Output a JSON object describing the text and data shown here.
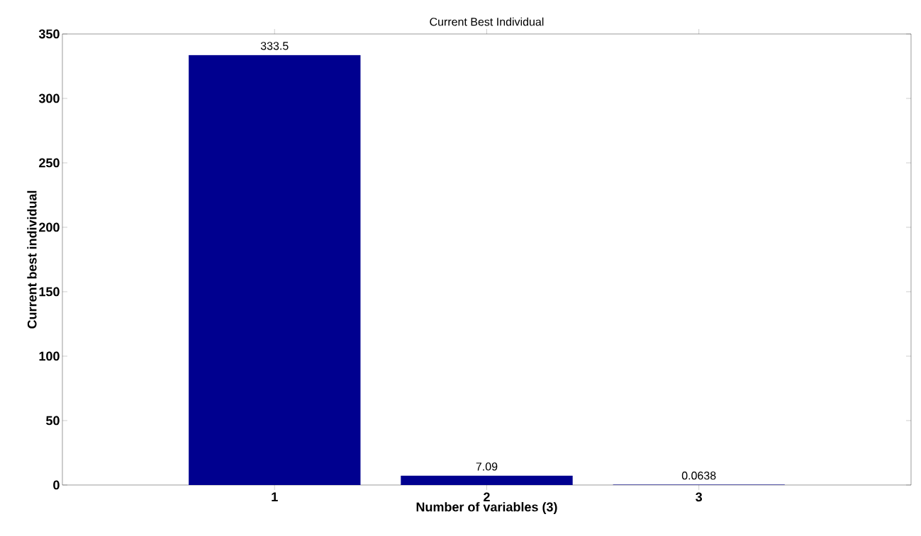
{
  "chart_data": {
    "type": "bar",
    "title": "Current Best Individual",
    "xlabel": "Number of variables (3)",
    "ylabel": "Current best individual",
    "categories": [
      "1",
      "2",
      "3"
    ],
    "values": [
      333.5,
      7.09,
      0.0638
    ],
    "color": "#00008f",
    "data_labels": true,
    "grid": false,
    "ylim": [
      0,
      350
    ],
    "yticks": [
      0,
      50,
      100,
      150,
      200,
      250,
      300,
      350
    ]
  }
}
